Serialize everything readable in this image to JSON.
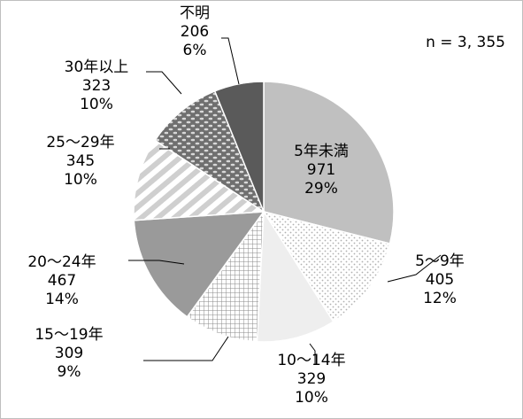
{
  "chart_data": {
    "type": "pie",
    "sample_size_label": "n = 3, 355",
    "slices": [
      {
        "name": "5年未満",
        "value": 971,
        "percent": "29%",
        "fill": "#c0c0c0",
        "pattern": "solid"
      },
      {
        "name": "5～9年",
        "value": 405,
        "percent": "12%",
        "fill": "#ffffff",
        "pattern": "dots"
      },
      {
        "name": "10～14年",
        "value": 329,
        "percent": "10%",
        "fill": "#eeeeee",
        "pattern": "solid"
      },
      {
        "name": "15～19年",
        "value": 309,
        "percent": "9%",
        "fill": "#ffffff",
        "pattern": "grid"
      },
      {
        "name": "20～24年",
        "value": 467,
        "percent": "14%",
        "fill": "#9a9a9a",
        "pattern": "solid"
      },
      {
        "name": "25～29年",
        "value": 345,
        "percent": "10%",
        "fill": "#ffffff",
        "pattern": "diagonal"
      },
      {
        "name": "30年以上",
        "value": 323,
        "percent": "10%",
        "fill": "#808080",
        "pattern": "bricks"
      },
      {
        "name": "不明",
        "value": 206,
        "percent": "6%",
        "fill": "#5a5a5a",
        "pattern": "solid"
      }
    ]
  }
}
